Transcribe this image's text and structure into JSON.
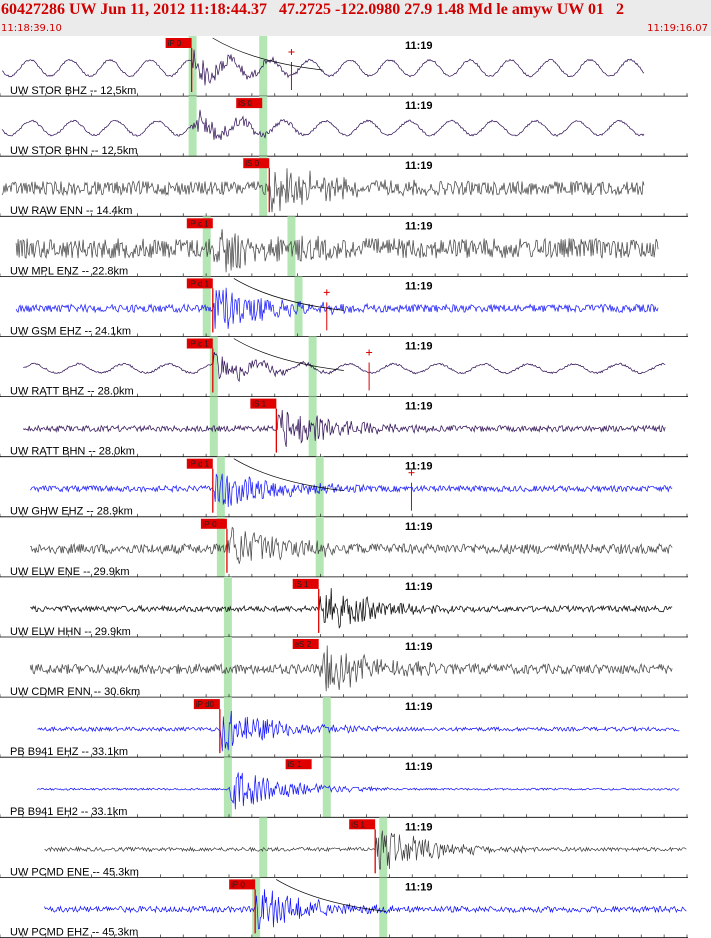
{
  "header": {
    "title": "60427286 UW Jun 11, 2012 11:18:44.37   47.2725 -122.0980 27.9 1.48 Md le amyw UW 01   2",
    "start_time": "11:18:39.10",
    "end_time": "11:19:16.07"
  },
  "colors": {
    "header_bg": "#ebebeb",
    "header_text": "#d00000",
    "pick": "#e00000",
    "window_band": "#b4e6b4",
    "trace_purple": "#2a0a52",
    "trace_gray": "#404040",
    "trace_blue": "#1010ff",
    "trace_black": "#000000"
  },
  "chart_data": {
    "type": "line",
    "title": "60427286 UW Jun 11, 2012 11:18:44.37   47.2725 -122.0980 27.9 1.48 Md le amyw UW 01   2",
    "x_range": [
      "11:18:39.10",
      "11:19:16.07"
    ],
    "minute_label": "11:19",
    "panels": [
      {
        "label": "UW STOR BHZ -- 12.5km",
        "color": "purple",
        "style": "wave",
        "start": 0.0,
        "end": 0.91,
        "amp": 9,
        "period": 40,
        "onset": 0.27,
        "pick": "iP 0",
        "pick_x": 0.27,
        "pick_dir": "down",
        "bands": [
          0.27,
          0.37
        ],
        "plus_marks": [
          0.41
        ],
        "arc": true
      },
      {
        "label": "UW STOR BHN -- 12.5km",
        "color": "purple",
        "style": "wave",
        "start": 0.0,
        "end": 0.91,
        "amp": 8,
        "period": 42,
        "onset": 0.27,
        "pick": "iS 0",
        "pick_x": 0.37,
        "pick_dir": "up",
        "bands": [
          0.27,
          0.37
        ]
      },
      {
        "label": "UW RAW ENN -- 14.4km",
        "color": "gray",
        "style": "noise",
        "start": 0.0,
        "end": 0.91,
        "amp": 7,
        "onset": 0.38,
        "pick": "iS 0",
        "pick_x": 0.38,
        "pick_dir": "down",
        "bands": [
          0.37
        ]
      },
      {
        "label": "UW MPL ENZ -- 22.8km",
        "color": "gray",
        "style": "noise",
        "start": 0.02,
        "end": 0.93,
        "amp": 10,
        "onset": 0.3,
        "pick": "iP c 1",
        "pick_x": 0.3,
        "pick_dir": "up",
        "bands": [
          0.29,
          0.41
        ]
      },
      {
        "label": "UW GSM EHZ -- 24.1km",
        "color": "blue",
        "style": "noise",
        "start": 0.02,
        "end": 0.93,
        "amp": 4,
        "onset": 0.3,
        "pick": "iP d 1",
        "pick_x": 0.3,
        "pick_dir": "down",
        "bands": [
          0.29,
          0.42
        ],
        "plus_marks": [
          0.46
        ],
        "arc": true
      },
      {
        "label": "UW RATT BHZ -- 28.0km",
        "color": "purple",
        "style": "wave",
        "start": 0.03,
        "end": 0.94,
        "amp": 5,
        "period": 45,
        "onset": 0.3,
        "pick": "iP c 1",
        "pick_x": 0.3,
        "pick_dir": "down",
        "bands": [
          0.3,
          0.44
        ],
        "plus_marks": [
          0.52
        ],
        "arc": true
      },
      {
        "label": "UW RATT BHN -- 28.0km",
        "color": "purple",
        "style": "noise",
        "start": 0.03,
        "end": 0.94,
        "amp": 3,
        "onset": 0.39,
        "pick": "iS 1",
        "pick_x": 0.39,
        "pick_dir": "down",
        "bands": [
          0.3,
          0.44
        ]
      },
      {
        "label": "UW GHW EHZ -- 28.9km",
        "color": "blue",
        "style": "noise",
        "start": 0.04,
        "end": 0.95,
        "amp": 3,
        "onset": 0.3,
        "pick": "iP d 1",
        "pick_x": 0.3,
        "pick_dir": "down",
        "bands": [
          0.31,
          0.45
        ],
        "plus_marks": [
          0.58
        ],
        "arc": true
      },
      {
        "label": "UW ELW ENE -- 29.9km",
        "color": "gray",
        "style": "noise",
        "start": 0.04,
        "end": 0.95,
        "amp": 5,
        "onset": 0.32,
        "pick": "iP 0",
        "pick_x": 0.32,
        "pick_dir": "down",
        "bands": [
          0.31,
          0.45
        ]
      },
      {
        "label": "UW ELW HHN -- 29.9km",
        "color": "black",
        "style": "noise",
        "start": 0.04,
        "end": 0.95,
        "amp": 3,
        "onset": 0.45,
        "pick": "iS 1",
        "pick_x": 0.45,
        "pick_dir": "down",
        "bands": [
          0.32
        ]
      },
      {
        "label": "UW CDMR ENN -- 30.6km",
        "color": "gray",
        "style": "noise",
        "start": 0.04,
        "end": 0.95,
        "amp": 5,
        "onset": 0.45,
        "pick": "eS 2",
        "pick_x": 0.45,
        "pick_dir": "up",
        "bands": [
          0.32
        ]
      },
      {
        "label": "PB B941 EHZ -- 33.1km",
        "color": "blue",
        "style": "noise",
        "start": 0.05,
        "end": 0.96,
        "amp": 2,
        "onset": 0.31,
        "pick": "iP d0",
        "pick_x": 0.31,
        "pick_dir": "down",
        "bands": [
          0.32,
          0.46
        ]
      },
      {
        "label": "PB B941 EH2 -- 33.1km",
        "color": "blue",
        "style": "noise",
        "start": 0.05,
        "end": 0.96,
        "amp": 1,
        "onset": 0.32,
        "pick": "iS 1",
        "pick_x": 0.44,
        "pick_dir": "up",
        "bands": [
          0.32,
          0.46
        ]
      },
      {
        "label": "UW PCMD ENE -- 45.3km",
        "color": "gray",
        "style": "noise",
        "start": 0.06,
        "end": 0.97,
        "amp": 2,
        "onset": 0.53,
        "pick": "iS 1",
        "pick_x": 0.53,
        "pick_dir": "down",
        "bands": [
          0.37,
          0.54
        ]
      },
      {
        "label": "UW PCMD EHZ -- 45.3km",
        "color": "blue",
        "style": "noise",
        "start": 0.06,
        "end": 0.97,
        "amp": 3,
        "onset": 0.36,
        "pick": "iP 0",
        "pick_x": 0.36,
        "pick_dir": "down",
        "bands": [
          0.36,
          0.54
        ],
        "arc": true
      }
    ]
  }
}
